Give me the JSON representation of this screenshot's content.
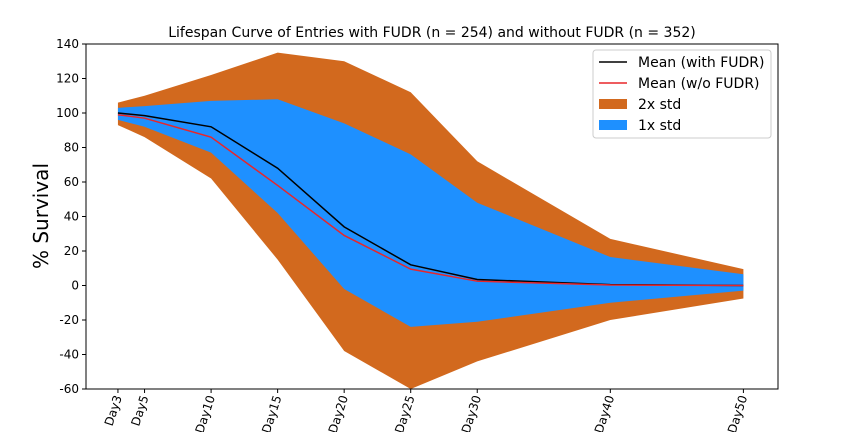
{
  "chart_data": {
    "type": "area",
    "title": "Lifespan Curve of Entries with FUDR (n = 254) and without FUDR (n = 352)",
    "xlabel": "",
    "ylabel": "% Survival",
    "x": [
      3,
      5,
      10,
      15,
      20,
      25,
      30,
      40,
      50
    ],
    "categories": [
      "Day3",
      "Day5",
      "Day10",
      "Day15",
      "Day20",
      "Day25",
      "Day30",
      "Day40",
      "Day50"
    ],
    "ylim": [
      -60,
      140
    ],
    "yticks": [
      -60,
      -40,
      -20,
      0,
      20,
      40,
      60,
      80,
      100,
      120,
      140
    ],
    "xlim": [
      0.6,
      52.6
    ],
    "grid": false,
    "legend_position": "top-right",
    "series": [
      {
        "name": "Mean (with FUDR)",
        "kind": "line",
        "color": "#000000",
        "values": [
          100,
          98.5,
          92,
          68,
          34,
          12,
          3.5,
          0.5,
          0
        ]
      },
      {
        "name": "Mean (w/o FUDR)",
        "kind": "line",
        "color": "#e8262a",
        "values": [
          99,
          97,
          86,
          58,
          29,
          9.5,
          2.5,
          0.3,
          0
        ]
      },
      {
        "name": "2x std",
        "kind": "band",
        "color": "#d2691e",
        "upper": [
          106,
          110,
          122,
          135,
          130,
          112,
          72,
          27,
          9.5
        ],
        "lower": [
          93,
          86,
          62,
          15,
          -38,
          -60,
          -44,
          -20,
          -7.5
        ]
      },
      {
        "name": "1x std",
        "kind": "band",
        "color": "#1e90ff",
        "upper": [
          103,
          104,
          107,
          108,
          94,
          76,
          48,
          16.5,
          6.5
        ],
        "lower": [
          96,
          92,
          77,
          42,
          -2,
          -24,
          -21,
          -10,
          -3
        ]
      }
    ]
  }
}
